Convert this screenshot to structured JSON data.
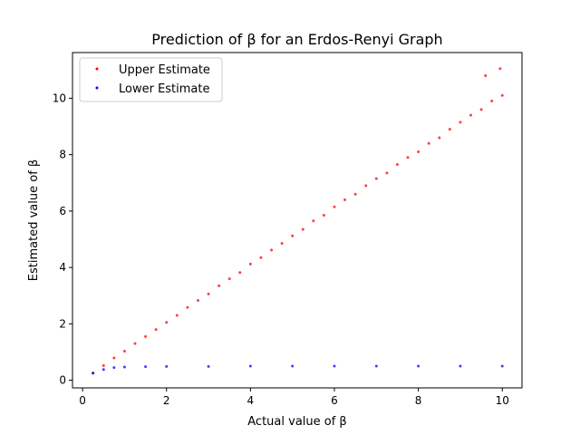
{
  "chart_data": {
    "type": "scatter",
    "title": "Prediction of β for an Erdos-Renyi Graph",
    "xlabel": "Actual value of β",
    "ylabel": "Estimated value of β",
    "xlim": [
      -0.24,
      10.47
    ],
    "ylim": [
      -0.27,
      11.62
    ],
    "xticks": [
      0,
      2,
      4,
      6,
      8,
      10
    ],
    "yticks": [
      0,
      2,
      4,
      6,
      8,
      10
    ],
    "grid": false,
    "legend_position": "upper left",
    "x_range": [
      0.25,
      10.0
    ],
    "series": [
      {
        "name": "Upper Estimate",
        "color": "#ff0000",
        "points": [
          [
            0.25,
            0.26
          ],
          [
            0.5,
            0.52
          ],
          [
            0.75,
            0.79
          ],
          [
            1.0,
            1.03
          ],
          [
            1.25,
            1.3
          ],
          [
            1.5,
            1.55
          ],
          [
            1.75,
            1.8
          ],
          [
            2.0,
            2.05
          ],
          [
            2.25,
            2.3
          ],
          [
            2.5,
            2.58
          ],
          [
            2.75,
            2.83
          ],
          [
            3.0,
            3.06
          ],
          [
            3.25,
            3.35
          ],
          [
            3.5,
            3.6
          ],
          [
            3.75,
            3.82
          ],
          [
            4.0,
            4.12
          ],
          [
            4.25,
            4.35
          ],
          [
            4.5,
            4.62
          ],
          [
            4.75,
            4.85
          ],
          [
            5.0,
            5.12
          ],
          [
            5.25,
            5.35
          ],
          [
            5.5,
            5.65
          ],
          [
            5.75,
            5.85
          ],
          [
            6.0,
            6.15
          ],
          [
            6.25,
            6.4
          ],
          [
            6.5,
            6.6
          ],
          [
            6.75,
            6.9
          ],
          [
            7.0,
            7.15
          ],
          [
            7.25,
            7.35
          ],
          [
            7.5,
            7.65
          ],
          [
            7.75,
            7.9
          ],
          [
            8.0,
            8.1
          ],
          [
            8.25,
            8.4
          ],
          [
            8.5,
            8.6
          ],
          [
            8.75,
            8.9
          ],
          [
            9.0,
            9.15
          ],
          [
            9.25,
            9.4
          ],
          [
            9.5,
            9.6
          ],
          [
            9.75,
            9.9
          ],
          [
            10.0,
            10.1
          ],
          [
            9.95,
            11.05
          ],
          [
            9.6,
            10.8
          ]
        ]
      },
      {
        "name": "Lower Estimate",
        "color": "#0000ff",
        "points": [
          [
            0.25,
            0.25
          ],
          [
            0.5,
            0.38
          ],
          [
            0.75,
            0.45
          ],
          [
            1.0,
            0.47
          ],
          [
            1.5,
            0.48
          ],
          [
            2.0,
            0.49
          ],
          [
            3.0,
            0.49
          ],
          [
            4.0,
            0.5
          ],
          [
            5.0,
            0.5
          ],
          [
            6.0,
            0.5
          ],
          [
            7.0,
            0.5
          ],
          [
            8.0,
            0.5
          ],
          [
            9.0,
            0.5
          ],
          [
            10.0,
            0.5
          ]
        ]
      }
    ]
  }
}
